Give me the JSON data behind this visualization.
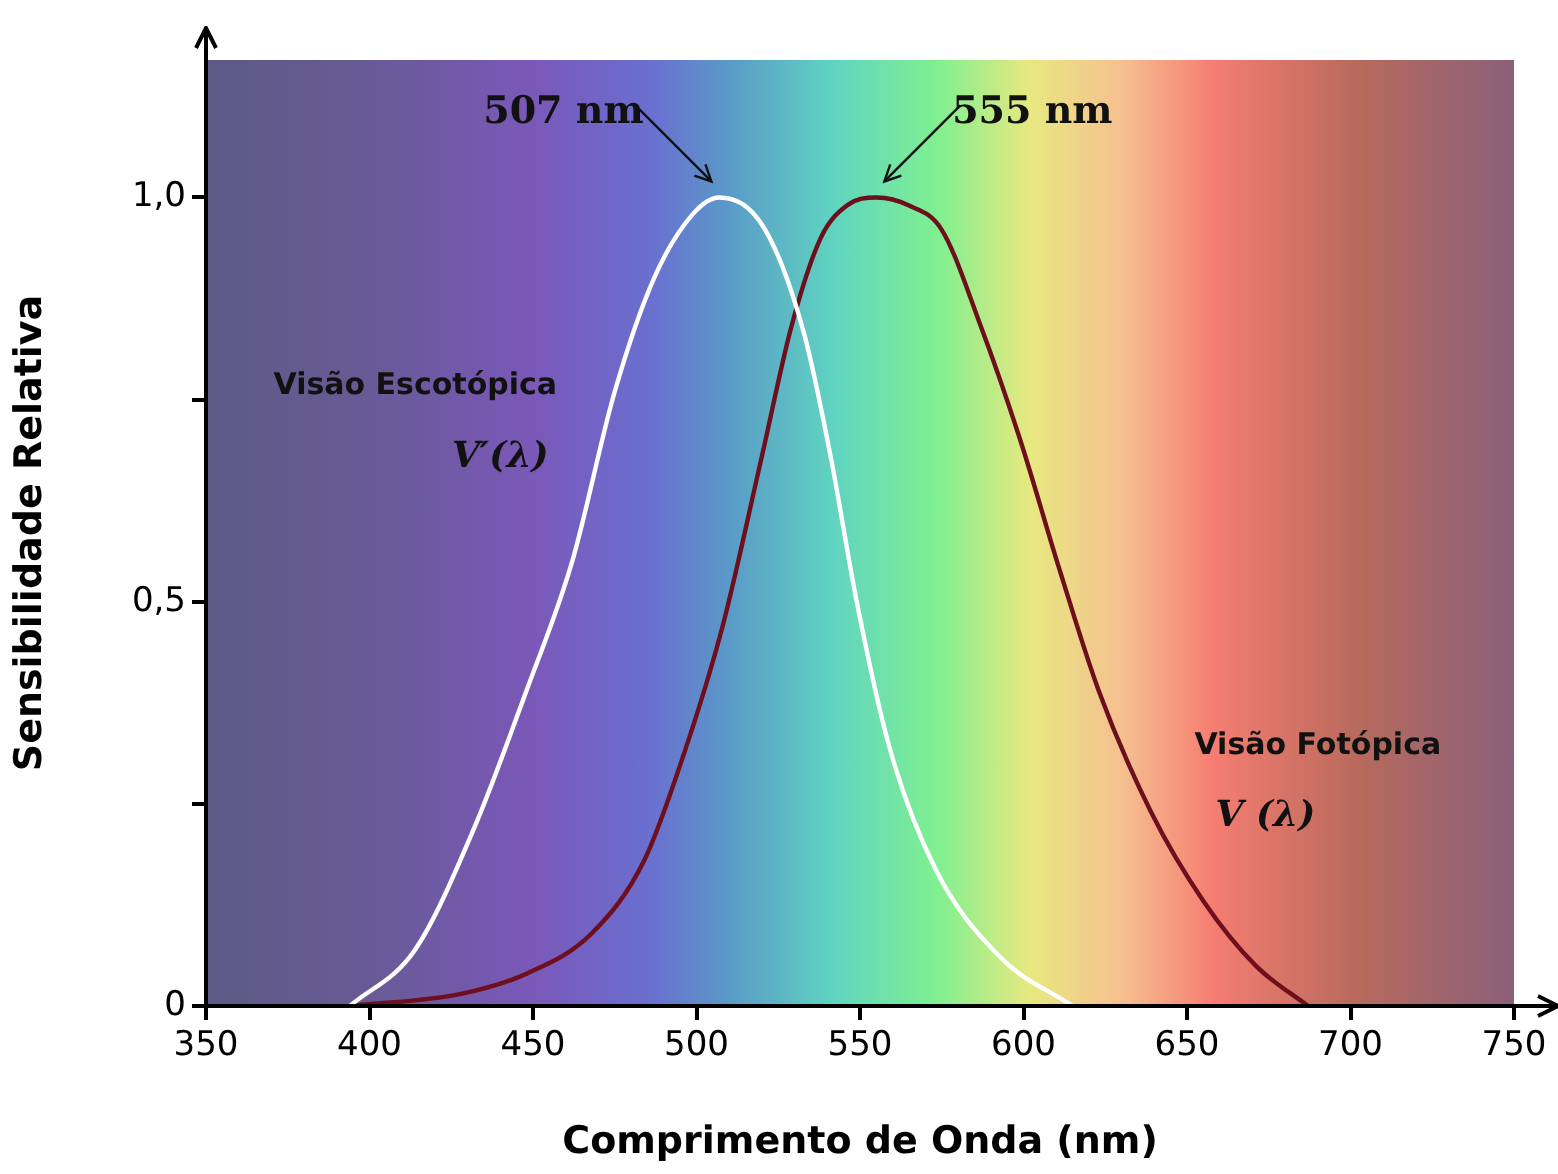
{
  "chart_data": {
    "type": "line",
    "xlabel": "Comprimento de Onda (nm)",
    "ylabel": "Sensibilidade Relativa",
    "xlim": [
      350,
      750
    ],
    "xticks": [
      350,
      400,
      450,
      500,
      550,
      600,
      650,
      700,
      750
    ],
    "ylim": [
      0,
      1.17
    ],
    "yticks": [
      {
        "value": 0,
        "label": "0"
      },
      {
        "value": 0.25,
        "label": null
      },
      {
        "value": 0.5,
        "label": "0,5"
      },
      {
        "value": 0.75,
        "label": null
      },
      {
        "value": 1,
        "label": "1,0"
      }
    ],
    "grid": false,
    "legend": false,
    "marker": "none",
    "line_style": "solid",
    "series": [
      {
        "color": "#ffffff",
        "x": [
          394,
          414,
          432,
          448,
          462,
          475,
          487,
          499,
          507,
          521,
          533,
          541,
          549,
          559,
          573,
          593,
          615
        ],
        "values": [
          0,
          0.07,
          0.22,
          0.39,
          0.55,
          0.76,
          0.9,
          0.98,
          1.0,
          0.96,
          0.83,
          0.68,
          0.5,
          0.32,
          0.17,
          0.06,
          0
        ]
      },
      {
        "color": "#6e0f1e",
        "x": [
          394,
          428,
          448,
          468,
          484,
          496,
          508,
          520,
          529,
          538,
          546,
          555,
          565,
          575,
          587,
          599,
          611,
          623,
          639,
          655,
          671,
          687
        ],
        "values": [
          0,
          0.015,
          0.04,
          0.09,
          0.18,
          0.31,
          0.47,
          0.68,
          0.84,
          0.95,
          0.99,
          1.0,
          0.99,
          0.96,
          0.84,
          0.7,
          0.54,
          0.39,
          0.24,
          0.13,
          0.05,
          0
        ]
      }
    ],
    "annotations": [
      {
        "text": "507 nm",
        "x": 507,
        "y": 1.0
      },
      {
        "text": "555 nm",
        "x": 555,
        "y": 1.0
      },
      "Visão Escotópica",
      "V′(λ)",
      "Visão Fotópica",
      "V (λ)"
    ]
  }
}
